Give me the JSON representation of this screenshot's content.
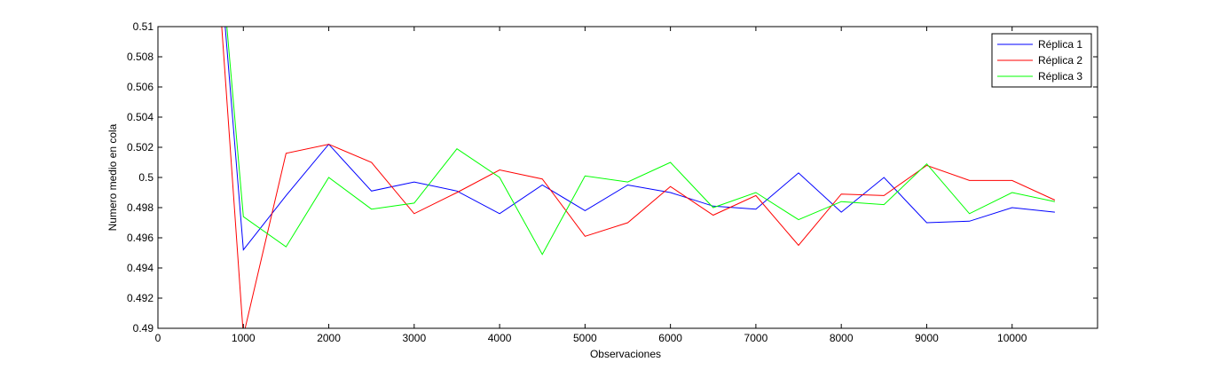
{
  "chart_data": {
    "type": "line",
    "title": "",
    "xlabel": "Observaciones",
    "ylabel": "Numero medio en cola",
    "xlim": [
      0,
      11000
    ],
    "ylim": [
      0.49,
      0.51
    ],
    "x_ticks": [
      0,
      1000,
      2000,
      3000,
      4000,
      5000,
      6000,
      7000,
      8000,
      9000,
      10000
    ],
    "x_tick_labels": [
      "0",
      "1000",
      "2000",
      "3000",
      "4000",
      "5000",
      "6000",
      "7000",
      "8000",
      "9000",
      "10000"
    ],
    "y_ticks": [
      0.49,
      0.492,
      0.494,
      0.496,
      0.498,
      0.5,
      0.502,
      0.504,
      0.506,
      0.508,
      0.51
    ],
    "y_tick_labels": [
      "0.49",
      "0.492",
      "0.494",
      "0.496",
      "0.498",
      "0.5",
      "0.502",
      "0.504",
      "0.506",
      "0.508",
      "0.51"
    ],
    "grid": false,
    "legend_position": "top-right",
    "series": [
      {
        "name": "Réplica 1",
        "color": "#0000ff",
        "x": [
          500,
          1000,
          1500,
          2000,
          2500,
          3000,
          3500,
          4000,
          4500,
          5000,
          5500,
          6000,
          6500,
          7000,
          7500,
          8000,
          8500,
          9000,
          9500,
          10000,
          10500
        ],
        "y": [
          0.53,
          0.4952,
          0.4988,
          0.5022,
          0.4991,
          0.4997,
          0.4991,
          0.4976,
          0.4995,
          0.4978,
          0.4995,
          0.499,
          0.4981,
          0.4979,
          0.5003,
          0.4977,
          0.5,
          0.497,
          0.4971,
          0.498,
          0.4977
        ]
      },
      {
        "name": "Réplica 2",
        "color": "#ff0000",
        "x": [
          500,
          1000,
          1500,
          2000,
          2500,
          3000,
          3500,
          4000,
          4500,
          5000,
          5500,
          6000,
          6500,
          7000,
          7500,
          8000,
          8500,
          9000,
          9500,
          10000,
          10500
        ],
        "y": [
          0.53,
          0.4895,
          0.5016,
          0.5022,
          0.501,
          0.4976,
          0.499,
          0.5005,
          0.4999,
          0.4961,
          0.497,
          0.4994,
          0.4975,
          0.4988,
          0.4955,
          0.4989,
          0.4988,
          0.5008,
          0.4998,
          0.4998,
          0.4985
        ]
      },
      {
        "name": "Réplica 3",
        "color": "#00ff00",
        "x": [
          500,
          1000,
          1500,
          2000,
          2500,
          3000,
          3500,
          4000,
          4500,
          5000,
          5500,
          6000,
          6500,
          7000,
          7500,
          8000,
          8500,
          9000,
          9500,
          10000,
          10500
        ],
        "y": [
          0.53,
          0.4974,
          0.4954,
          0.5,
          0.4979,
          0.4983,
          0.5019,
          0.5,
          0.4949,
          0.5001,
          0.4997,
          0.501,
          0.498,
          0.499,
          0.4972,
          0.4984,
          0.4982,
          0.5009,
          0.4976,
          0.499,
          0.4984
        ]
      }
    ]
  }
}
